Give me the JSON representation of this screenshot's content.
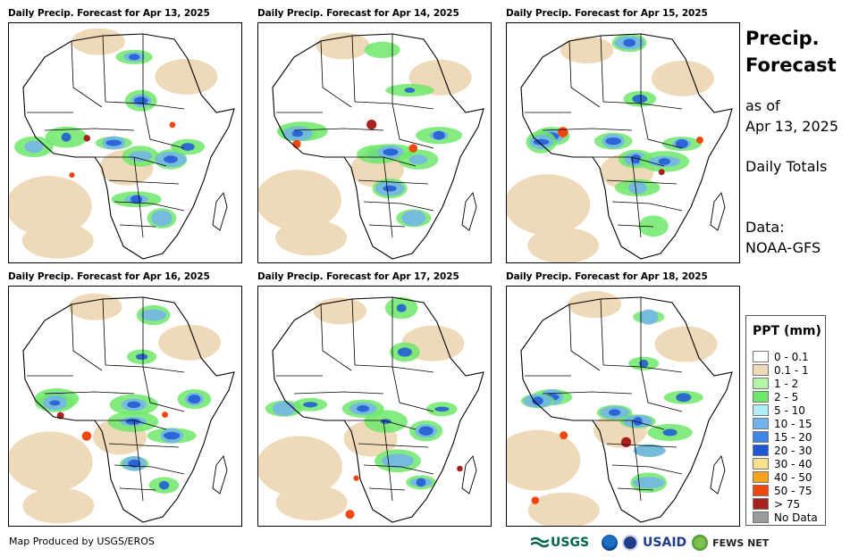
{
  "panels": [
    {
      "title": "Daily Precip. Forecast for Apr 13, 2025"
    },
    {
      "title": "Daily Precip. Forecast for Apr 14, 2025"
    },
    {
      "title": "Daily Precip. Forecast for Apr 15, 2025"
    },
    {
      "title": "Daily Precip. Forecast for Apr 16, 2025"
    },
    {
      "title": "Daily Precip. Forecast for Apr 17, 2025"
    },
    {
      "title": "Daily Precip. Forecast for Apr 18, 2025"
    }
  ],
  "side": {
    "title_line1": "Precip.",
    "title_line2": "Forecast",
    "asof_line1": "as of",
    "asof_line2": "Apr 13, 2025",
    "totals": "Daily Totals",
    "data_line1": "Data:",
    "data_line2": "NOAA-GFS"
  },
  "legend": {
    "title": "PPT (mm)",
    "items": [
      {
        "label": "0 - 0.1",
        "color": "#ffffff"
      },
      {
        "label": "0.1 - 1",
        "color": "#eed9b8"
      },
      {
        "label": "1 - 2",
        "color": "#b4f5a7"
      },
      {
        "label": "2 - 5",
        "color": "#6ee86a"
      },
      {
        "label": "5 - 10",
        "color": "#aeeef4"
      },
      {
        "label": "10 - 15",
        "color": "#73b3ec"
      },
      {
        "label": "15 - 20",
        "color": "#3f87e6"
      },
      {
        "label": "20 - 30",
        "color": "#1f56d6"
      },
      {
        "label": "30 - 40",
        "color": "#f8e08c"
      },
      {
        "label": "40 - 50",
        "color": "#f7a21b"
      },
      {
        "label": "50 - 75",
        "color": "#f0470f"
      },
      {
        "label": "> 75",
        "color": "#a8211d"
      },
      {
        "label": "No Data",
        "color": "#9a9a9a"
      }
    ]
  },
  "footer": {
    "credit": "Map Produced by USGS/EROS",
    "usgs": "USGS",
    "usaid": "USAID",
    "fews": "FEWS NET"
  }
}
